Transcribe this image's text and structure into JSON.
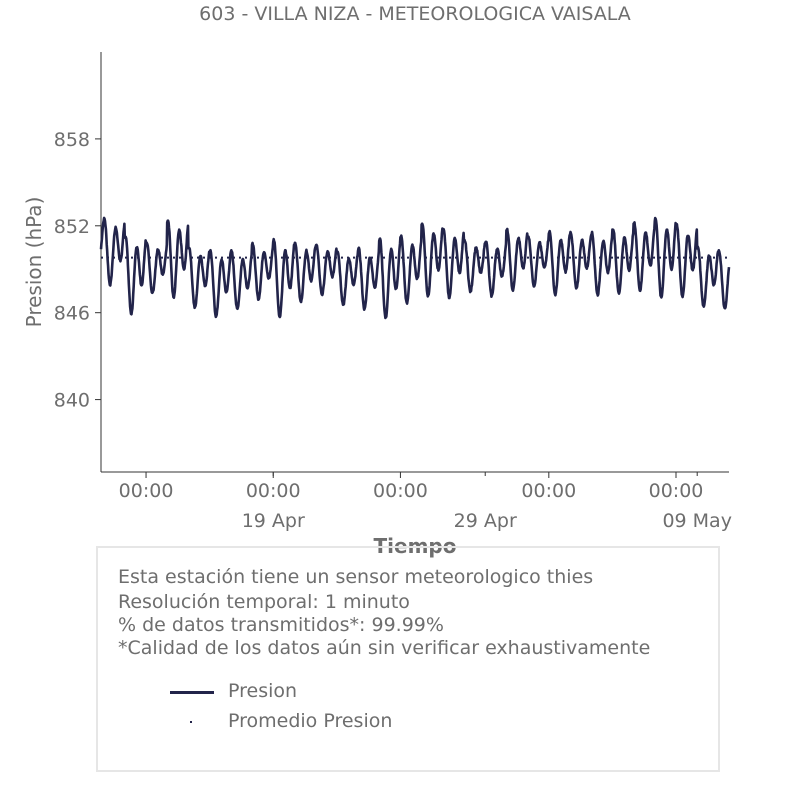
{
  "chart_data": {
    "type": "line",
    "title": "603 - VILLA NIZA - METEOROLOGICA VAISALA",
    "xlabel": "Tiempo",
    "ylabel": "Presion (hPa)",
    "ylim": [
      835,
      864
    ],
    "yticks": [
      840,
      846,
      852,
      858
    ],
    "x_range": [
      "2024-04-10T21:00",
      "2024-05-10T12:00"
    ],
    "xticks_major": [
      {
        "date": "2024-04-13T00:00",
        "label": "00:00"
      },
      {
        "date": "2024-04-19T00:00",
        "label": "00:00"
      },
      {
        "date": "2024-04-25T00:00",
        "label": "00:00"
      },
      {
        "date": "2024-05-02T00:00",
        "label": "00:00"
      },
      {
        "date": "2024-05-08T00:00",
        "label": "00:00"
      }
    ],
    "xticks_minor": [
      {
        "date": "2024-04-19T00:00",
        "label": "19 Apr"
      },
      {
        "date": "2024-04-29T00:00",
        "label": "29 Apr"
      },
      {
        "date": "2024-05-09T00:00",
        "label": "09 May"
      }
    ],
    "grid": false,
    "series": [
      {
        "name": "Presion",
        "color": "#22244a",
        "style": "solid",
        "x": [
          "2024-04-11",
          "2024-04-12",
          "2024-04-13",
          "2024-04-14",
          "2024-04-15",
          "2024-04-16",
          "2024-04-17",
          "2024-04-18",
          "2024-04-19",
          "2024-04-20",
          "2024-04-21",
          "2024-04-22",
          "2024-04-23",
          "2024-04-24",
          "2024-04-25",
          "2024-04-26",
          "2024-04-27",
          "2024-04-28",
          "2024-04-29",
          "2024-04-30",
          "2024-05-01",
          "2024-05-02",
          "2024-05-03",
          "2024-05-04",
          "2024-05-05",
          "2024-05-06",
          "2024-05-07",
          "2024-05-08",
          "2024-05-09",
          "2024-05-10"
        ],
        "daily_max": [
          852.9,
          851.8,
          851.2,
          852.9,
          850.9,
          850.7,
          850.6,
          851.1,
          851.5,
          851.2,
          851.0,
          850.6,
          850.8,
          851.6,
          851.7,
          852.6,
          852.2,
          851.3,
          851.3,
          852.1,
          851.6,
          852.0,
          851.9,
          851.9,
          852.2,
          852.6,
          853.0,
          852.5,
          850.9,
          850.6
        ],
        "daily_min": [
          848.0,
          846.0,
          847.4,
          847.1,
          846.4,
          845.8,
          846.3,
          847.0,
          845.8,
          846.8,
          847.3,
          846.6,
          846.3,
          845.7,
          846.7,
          847.2,
          847.1,
          847.5,
          847.2,
          847.6,
          847.9,
          847.3,
          847.7,
          847.3,
          847.4,
          847.6,
          847.1,
          847.2,
          846.5,
          846.3
        ]
      },
      {
        "name": "Promedio Presion",
        "color": "#22244a",
        "style": "dotted",
        "value": 849.8
      }
    ],
    "legend_position": "bottom"
  },
  "info": {
    "line1": "Esta estación tiene un sensor meteorologico thies",
    "line2": "Resolución temporal: 1 minuto",
    "line3": "% de datos transmitidos*: 99.99%",
    "line4": "*Calidad de los datos aún sin verificar exhaustivamente"
  }
}
